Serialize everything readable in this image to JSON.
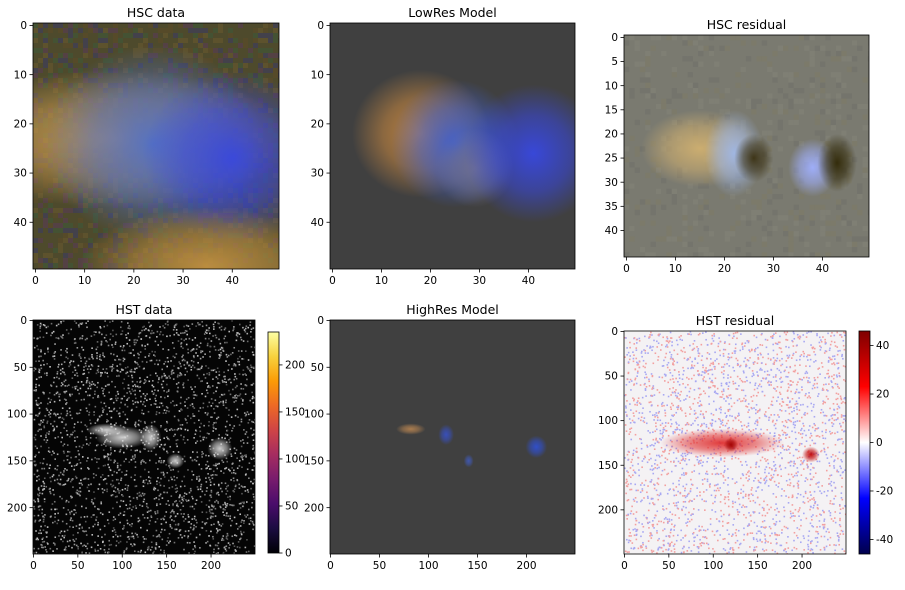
{
  "chart_data": [
    {
      "type": "image",
      "title": "HSC data",
      "xticks": [
        0,
        10,
        20,
        30,
        40
      ],
      "yticks": [
        0,
        10,
        20,
        30,
        40
      ],
      "xlim": [
        -0.5,
        49.5
      ],
      "ylim": [
        -0.5,
        49.5
      ],
      "colormap": "rgb-composite",
      "sources": [
        {
          "label": "elongated-galaxy-left",
          "x": 16,
          "y": 23,
          "color": "#c89a50"
        },
        {
          "label": "galaxy-center",
          "x": 24,
          "y": 24,
          "color": "#5070c8"
        },
        {
          "label": "compact-blue-source",
          "x": 40,
          "y": 27,
          "color": "#3848e0"
        },
        {
          "label": "bottom-source",
          "x": 35,
          "y": 49,
          "color": "#c09040"
        }
      ]
    },
    {
      "type": "image",
      "title": "LowRes Model",
      "xticks": [
        0,
        10,
        20,
        30,
        40
      ],
      "yticks": [
        0,
        10,
        20,
        30,
        40
      ],
      "xlim": [
        -0.5,
        49.5
      ],
      "ylim": [
        -0.5,
        49.5
      ],
      "colormap": "rgb-composite",
      "sources": [
        {
          "label": "model-component-1",
          "x": 18,
          "y": 22,
          "color": "#c88840"
        },
        {
          "label": "model-component-2",
          "x": 25,
          "y": 24,
          "color": "#4060d0"
        },
        {
          "label": "model-component-3",
          "x": 29,
          "y": 29,
          "color": "#707090"
        },
        {
          "label": "model-component-4",
          "x": 41,
          "y": 26,
          "color": "#3848e0"
        }
      ]
    },
    {
      "type": "image",
      "title": "HSC residual",
      "xticks": [
        0,
        10,
        20,
        30,
        40
      ],
      "yticks": [
        0,
        5,
        10,
        15,
        20,
        25,
        30,
        35,
        40
      ],
      "xlim": [
        -0.5,
        49.5
      ],
      "ylim": [
        -0.5,
        45.5
      ],
      "colormap": "rgb-composite",
      "sources": [
        {
          "label": "residual-bright-left",
          "x": 15,
          "y": 23,
          "color": "#d0b070"
        },
        {
          "label": "residual-blue-1",
          "x": 22,
          "y": 24,
          "color": "#a0b8e8"
        },
        {
          "label": "residual-dark-1",
          "x": 26,
          "y": 25,
          "color": "#3a3010"
        },
        {
          "label": "residual-blue-2",
          "x": 38,
          "y": 27,
          "color": "#a0b0ff"
        },
        {
          "label": "residual-dark-2",
          "x": 43,
          "y": 26,
          "color": "#302806"
        }
      ]
    },
    {
      "type": "image",
      "title": "HST data",
      "xticks": [
        0,
        50,
        100,
        150,
        200
      ],
      "yticks": [
        0,
        50,
        100,
        150,
        200
      ],
      "xlim": [
        -0.5,
        249.5
      ],
      "ylim": [
        -0.5,
        249.5
      ],
      "colormap": "inferno",
      "colorbar": {
        "ticks": [
          0,
          50,
          100,
          150,
          200
        ],
        "min": 0,
        "max": 235
      }
    },
    {
      "type": "image",
      "title": "HighRes Model",
      "xticks": [
        0,
        50,
        100,
        150,
        200
      ],
      "yticks": [
        0,
        50,
        100,
        150,
        200
      ],
      "xlim": [
        -0.5,
        249.5
      ],
      "ylim": [
        -0.5,
        249.5
      ],
      "colormap": "rgb-composite",
      "sources": [
        {
          "label": "hires-component-1",
          "x": 82,
          "y": 116,
          "color": "#b08050"
        },
        {
          "label": "hires-component-2",
          "x": 118,
          "y": 122,
          "color": "#3850c0"
        },
        {
          "label": "hires-component-3",
          "x": 141,
          "y": 150,
          "color": "#4058b0"
        },
        {
          "label": "hires-component-4",
          "x": 210,
          "y": 135,
          "color": "#3050d0"
        }
      ]
    },
    {
      "type": "heatmap",
      "title": "HST residual",
      "xticks": [
        0,
        50,
        100,
        150,
        200
      ],
      "yticks": [
        0,
        50,
        100,
        150,
        200
      ],
      "xlim": [
        -0.5,
        249.5
      ],
      "ylim": [
        -0.5,
        249.5
      ],
      "colormap": "seismic",
      "colorbar": {
        "ticks": [
          -40,
          -20,
          0,
          20,
          40
        ],
        "min": -46,
        "max": 46
      }
    }
  ]
}
